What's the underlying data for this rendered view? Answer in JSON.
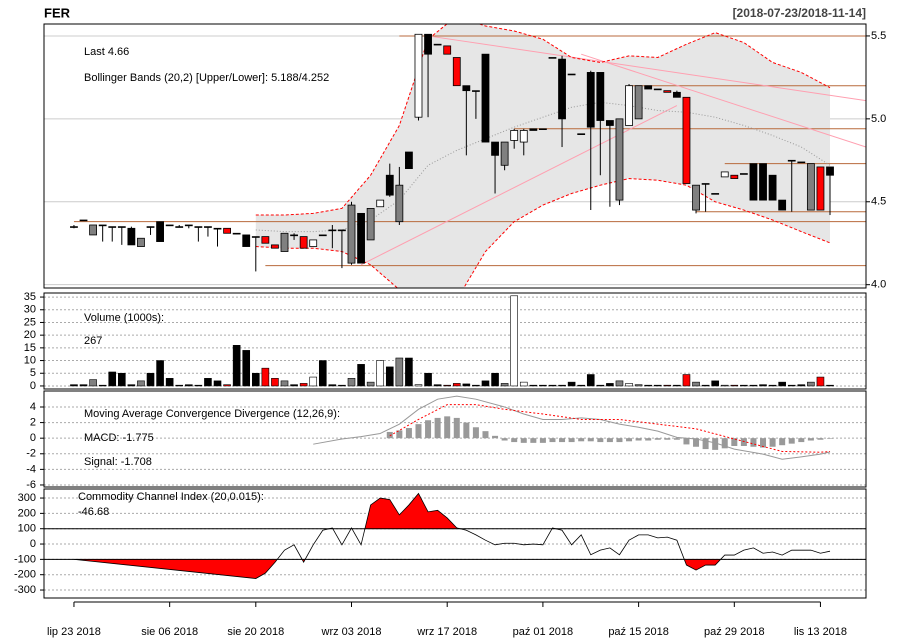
{
  "chart_data": [
    {
      "type": "candlestick",
      "title": "FER",
      "subtitle": "[2018-07-23/2018-11-14]",
      "annotations": [
        "Last 4.66"
      ],
      "xlim": [
        -3.13,
        82.76
      ],
      "ylim": [
        3.98,
        5.572
      ],
      "yticks": [
        {
          "value": 4,
          "label": "4.0"
        },
        4.5,
        {
          "value": 5,
          "label": "5.0"
        },
        5.5
      ],
      "grid": true,
      "grid_color": "#cccccc",
      "open": [
        4.35,
        4.39,
        4.36,
        4.36,
        4.35,
        4.35,
        4.34,
        4.28,
        4.35,
        4.38,
        4.36,
        4.35,
        4.36,
        4.35,
        4.35,
        4.34,
        4.34,
        4.31,
        4.3,
        4.29,
        4.29,
        4.24,
        4.2,
        4.3,
        4.29,
        4.23,
        4.3,
        4.33,
        4.33,
        4.13,
        4.43,
        4.27,
        4.47,
        4.66,
        4.38,
        4.8,
        5.01,
        5.51,
        5.45,
        5.44,
        5.37,
        5.2,
        5.17,
        5.39,
        4.86,
        4.72,
        4.87,
        4.86,
        4.94,
        4.94,
        5.37,
        5.36,
        5.27,
        4.91,
        5.28,
        5.28,
        4.99,
        4.51,
        4.96,
        5.0,
        5.2,
        5.18,
        5.17,
        5.16,
        5.13,
        4.45,
        4.61,
        4.55,
        4.65,
        4.66,
        4.67,
        4.73,
        4.73,
        4.66,
        4.51,
        4.75,
        4.74,
        4.45,
        4.71,
        4.71
      ],
      "high": [
        4.36,
        4.39,
        4.36,
        4.36,
        4.35,
        4.35,
        4.35,
        4.28,
        4.35,
        4.38,
        4.36,
        4.36,
        4.36,
        4.35,
        4.35,
        4.34,
        4.34,
        4.31,
        4.3,
        4.29,
        4.29,
        4.24,
        4.31,
        4.31,
        4.29,
        4.27,
        4.3,
        4.36,
        4.33,
        4.5,
        4.43,
        4.46,
        4.51,
        4.73,
        4.71,
        4.8,
        5.51,
        5.51,
        5.45,
        5.44,
        5.37,
        5.2,
        5.17,
        5.39,
        4.86,
        4.86,
        4.94,
        4.94,
        4.94,
        4.94,
        5.37,
        5.38,
        5.27,
        4.91,
        5.29,
        5.28,
        4.99,
        5.0,
        5.21,
        5.2,
        5.2,
        5.18,
        5.17,
        5.17,
        5.13,
        4.6,
        4.61,
        4.55,
        4.68,
        4.66,
        4.67,
        4.73,
        4.73,
        4.66,
        4.51,
        4.75,
        4.74,
        4.73,
        4.71,
        4.71
      ],
      "low": [
        4.34,
        4.39,
        4.3,
        4.26,
        4.26,
        4.24,
        4.24,
        4.23,
        4.3,
        4.26,
        4.36,
        4.35,
        4.34,
        4.26,
        4.29,
        4.23,
        4.31,
        4.31,
        4.23,
        4.08,
        4.25,
        4.22,
        4.2,
        4.27,
        4.22,
        4.23,
        4.3,
        4.22,
        4.1,
        4.12,
        4.13,
        4.27,
        4.47,
        4.53,
        4.36,
        4.7,
        4.99,
        5.01,
        5.45,
        5.39,
        5.2,
        4.78,
        5.0,
        4.86,
        4.55,
        4.69,
        4.82,
        4.78,
        4.93,
        4.94,
        5.37,
        4.83,
        5.27,
        4.91,
        4.45,
        4.66,
        4.47,
        4.48,
        4.96,
        5.0,
        5.18,
        5.18,
        5.16,
        5.13,
        4.61,
        4.43,
        4.44,
        4.55,
        4.65,
        4.64,
        4.67,
        4.51,
        4.51,
        4.51,
        4.45,
        4.44,
        4.74,
        4.45,
        4.45,
        4.42
      ],
      "close": [
        4.35,
        4.39,
        4.3,
        4.36,
        4.35,
        4.35,
        4.24,
        4.23,
        4.35,
        4.26,
        4.36,
        4.35,
        4.36,
        4.35,
        4.35,
        4.34,
        4.31,
        4.31,
        4.23,
        4.29,
        4.25,
        4.22,
        4.31,
        4.3,
        4.22,
        4.27,
        4.3,
        4.33,
        4.33,
        4.48,
        4.13,
        4.46,
        4.51,
        4.54,
        4.6,
        4.7,
        5.51,
        5.39,
        5.45,
        5.39,
        5.2,
        5.17,
        5.17,
        4.86,
        4.78,
        4.86,
        4.93,
        4.93,
        4.93,
        4.94,
        5.37,
        5.0,
        5.27,
        4.91,
        4.95,
        4.99,
        4.96,
        5.0,
        5.2,
        5.2,
        5.18,
        5.18,
        5.16,
        5.13,
        4.61,
        4.6,
        4.61,
        4.55,
        4.68,
        4.64,
        4.67,
        4.51,
        4.51,
        4.51,
        4.45,
        4.75,
        4.74,
        4.73,
        4.45,
        4.66
      ],
      "colors": [
        "#000000",
        "#000000",
        "#808080",
        "#000000",
        "#000000",
        "#000000",
        "#000000",
        "#808080",
        "#000000",
        "#000000",
        "#000000",
        "#000000",
        "#000000",
        "#000000",
        "#000000",
        "#000000",
        "#ff0000",
        "#000000",
        "#000000",
        "#000000",
        "#ff0000",
        "#ff0000",
        "#808080",
        "#000000",
        "#ff0000",
        "#ffffff",
        "#000000",
        "#000000",
        "#000000",
        "#808080",
        "#000000",
        "#808080",
        "#ffffff",
        "#000000",
        "#808080",
        "#000000",
        "#ffffff",
        "#000000",
        "#000000",
        "#ff0000",
        "#ff0000",
        "#000000",
        "#000000",
        "#000000",
        "#000000",
        "#808080",
        "#ffffff",
        "#ffffff",
        "#000000",
        "#000000",
        "#000000",
        "#000000",
        "#000000",
        "#000000",
        "#000000",
        "#000000",
        "#000000",
        "#808080",
        "#ffffff",
        "#808080",
        "#000000",
        "#000000",
        "#ff0000",
        "#000000",
        "#ff0000",
        "#808080",
        "#000000",
        "#000000",
        "#ffffff",
        "#ff0000",
        "#000000",
        "#000000",
        "#000000",
        "#000000",
        "#000000",
        "#000000",
        "#000000",
        "#808080",
        "#ff0000",
        "#000000"
      ],
      "bands": {
        "label": "Bollinger Bands (20,2) [Upper/Lower]: 5.188/4.252",
        "color": "#ff0000",
        "fill": "#e6e6e6",
        "middle_color": "#999999",
        "x": [
          19,
          22,
          25,
          28,
          31,
          34,
          37,
          40,
          43,
          46,
          49,
          52,
          55,
          58,
          61,
          64,
          67,
          70,
          73,
          76,
          79
        ],
        "upper": [
          4.42,
          4.42,
          4.43,
          4.46,
          4.66,
          4.96,
          5.48,
          5.62,
          5.56,
          5.53,
          5.48,
          5.37,
          5.34,
          5.38,
          5.37,
          5.45,
          5.52,
          5.46,
          5.34,
          5.28,
          5.188
        ],
        "middle": [
          4.33,
          4.32,
          4.32,
          4.33,
          4.39,
          4.51,
          4.72,
          4.81,
          4.88,
          4.95,
          5.01,
          5.07,
          5.1,
          5.08,
          5.05,
          5.04,
          5.01,
          4.96,
          4.9,
          4.83,
          4.72
        ],
        "lower": [
          4.23,
          4.22,
          4.22,
          4.2,
          4.12,
          3.97,
          3.83,
          3.91,
          4.2,
          4.38,
          4.48,
          4.55,
          4.6,
          4.64,
          4.63,
          4.6,
          4.5,
          4.45,
          4.39,
          4.32,
          4.252
        ]
      },
      "hline_color": "#b86a3c",
      "hlines": [
        {
          "start": 0,
          "value": 4.38
        },
        {
          "start": 20,
          "value": 4.115
        },
        {
          "start": 34,
          "value": 5.5
        },
        {
          "start": 46,
          "value": 4.94
        },
        {
          "start": 58,
          "value": 5.2
        },
        {
          "start": 65,
          "value": 4.44
        },
        {
          "start": 68,
          "value": 4.73
        }
      ],
      "trend_color": "#ff9fb0",
      "trendlines": [
        {
          "x": [
            37,
            82.76
          ],
          "values": [
            5.5,
            5.11
          ]
        },
        {
          "x": [
            53,
            82.76
          ],
          "values": [
            5.39,
            4.83
          ]
        },
        {
          "x": [
            30,
            63
          ],
          "values": [
            4.12,
            5.08
          ]
        }
      ]
    },
    {
      "type": "bar",
      "annotations": [
        "Volume (1000s):",
        "267"
      ],
      "xlim": [
        -3.13,
        82.76
      ],
      "ylim": [
        -1.2,
        36.6
      ],
      "yticks": [
        0,
        5,
        10,
        15,
        20,
        25,
        30,
        35
      ],
      "grid": true,
      "grid_color": "#aaaaaa",
      "values": [
        0.5,
        0.5,
        2.5,
        0.3,
        5.5,
        5,
        0.5,
        2,
        5,
        10,
        3,
        0.3,
        0.5,
        0.3,
        3,
        2,
        0.5,
        16,
        14,
        5,
        7,
        3,
        2,
        0.5,
        1,
        3.5,
        10,
        0.5,
        0.3,
        3,
        8.5,
        1.5,
        10,
        7.5,
        11,
        11,
        0.5,
        5,
        0.5,
        0.3,
        1,
        0.8,
        0.3,
        2,
        5,
        1,
        35.5,
        1.5,
        0.3,
        0.3,
        0.3,
        0.3,
        1.5,
        0.3,
        4.5,
        0.3,
        1,
        2,
        1,
        0.5,
        0.3,
        0.3,
        0.3,
        0.3,
        4.5,
        1.5,
        0.3,
        2,
        0.3,
        0.3,
        0.3,
        0.3,
        0.5,
        0.3,
        1.5,
        0.3,
        0.5,
        1.5,
        3.5,
        0.3
      ]
    },
    {
      "type": "line",
      "title": "Moving Average Convergence Divergence (12,26,9):",
      "xlim": [
        -3.13,
        82.76
      ],
      "ylim": [
        -6.26,
        6.05
      ],
      "yticks": [
        -6,
        -4,
        -2,
        0,
        2,
        4
      ],
      "grid": true,
      "grid_color": "#aaaaaa",
      "histogram": {
        "color": "#999999",
        "x": [
          33,
          34,
          35,
          36,
          37,
          38,
          39,
          40,
          41,
          42,
          43,
          44,
          45,
          46,
          47,
          48,
          49,
          50,
          51,
          52,
          53,
          54,
          55,
          56,
          57,
          58,
          59,
          60,
          61,
          62,
          63,
          64,
          65,
          66,
          67,
          68,
          69,
          70,
          71,
          72,
          73,
          74,
          75,
          76,
          77,
          78,
          79
        ],
        "values": [
          0.8,
          1.0,
          1.3,
          1.8,
          2.3,
          2.6,
          2.8,
          2.6,
          2.0,
          1.4,
          0.9,
          0.3,
          -0.3,
          -0.5,
          -0.6,
          -0.6,
          -0.6,
          -0.5,
          -0.5,
          -0.5,
          -0.4,
          -0.4,
          -0.5,
          -0.5,
          -0.5,
          -0.4,
          -0.3,
          -0.3,
          -0.2,
          -0.2,
          -0.2,
          -0.8,
          -1.1,
          -1.4,
          -1.5,
          -1.3,
          -1.0,
          -1.0,
          -1.1,
          -1.2,
          -1.1,
          -0.9,
          -0.7,
          -0.5,
          -0.3,
          -0.2,
          -0.07
        ]
      },
      "series": [
        {
          "name": "MACD: -1.775",
          "color": "#999999",
          "dash": false,
          "x": [
            25,
            28,
            30,
            32,
            34,
            36,
            38,
            40,
            42,
            45,
            47,
            49,
            51,
            53,
            55,
            57,
            59,
            61,
            63,
            65,
            67,
            69,
            72,
            74,
            76,
            78,
            79
          ],
          "values": [
            -0.77,
            -0.1,
            0.2,
            0.6,
            1.8,
            3.7,
            5.0,
            5.4,
            5.0,
            4.0,
            3.1,
            2.4,
            2.4,
            2.6,
            2.4,
            1.8,
            1.4,
            0.9,
            0.1,
            -0.1,
            -0.6,
            -1.4,
            -2.05,
            -2.7,
            -2.4,
            -2.05,
            -1.775
          ]
        },
        {
          "name": "Signal: -1.708",
          "color": "#ff0000",
          "dash": true,
          "x": [
            33,
            36,
            39,
            42,
            45,
            49,
            53,
            57,
            61,
            65,
            69,
            74,
            78,
            79
          ],
          "values": [
            0.3,
            2.4,
            4.3,
            4.3,
            3.7,
            3.1,
            2.4,
            2.4,
            1.8,
            1.2,
            -0.1,
            -1.7,
            -1.8,
            -1.708
          ]
        }
      ]
    },
    {
      "type": "line",
      "title": "Commodity Channel Index (20,0.015):",
      "annotations": [
        "-46.68"
      ],
      "xlim": [
        -3.13,
        82.76
      ],
      "ylim": [
        -352,
        359
      ],
      "yticks": [
        -300,
        -200,
        -100,
        0,
        100,
        200,
        300
      ],
      "grid": true,
      "grid_color": "#aaaaaa",
      "levels": [
        100,
        -100
      ],
      "fill": "#ff0000",
      "color": "#000000",
      "x": [
        0,
        19,
        20,
        21,
        22,
        23,
        24,
        25,
        26,
        27,
        28,
        29,
        30,
        31,
        32,
        33,
        34,
        35,
        36,
        37,
        38,
        39,
        40,
        41,
        42,
        43,
        44,
        45,
        46,
        47,
        48,
        49,
        50,
        51,
        52,
        53,
        54,
        55,
        56,
        57,
        58,
        59,
        60,
        61,
        62,
        63,
        64,
        65,
        66,
        67,
        68,
        69,
        70,
        71,
        72,
        73,
        74,
        75,
        76,
        77,
        78,
        79
      ],
      "values": [
        -100,
        -225,
        -190,
        -120,
        -40,
        -5,
        -118,
        -5,
        90,
        105,
        -5,
        105,
        -5,
        255,
        300,
        290,
        190,
        255,
        330,
        210,
        220,
        170,
        105,
        90,
        60,
        25,
        -5,
        5,
        5,
        -5,
        0,
        -5,
        105,
        90,
        -5,
        60,
        -70,
        -40,
        -25,
        -70,
        25,
        60,
        60,
        40,
        45,
        25,
        -137,
        -170,
        -137,
        -137,
        -72,
        -72,
        -40,
        -25,
        -60,
        -52,
        -72,
        -40,
        -40,
        -40,
        -60,
        -46.68
      ],
      "xticks": [
        {
          "value": 0,
          "label": "lip 23 2018"
        },
        {
          "value": 10,
          "label": "sie 06 2018"
        },
        {
          "value": 19,
          "label": "sie 20 2018"
        },
        {
          "value": 29,
          "label": "wrz 03 2018"
        },
        {
          "value": 39,
          "label": "wrz 17 2018"
        },
        {
          "value": 49,
          "label": "paź 01 2018"
        },
        {
          "value": 59,
          "label": "paź 15 2018"
        },
        {
          "value": 69,
          "label": "paź 29 2018"
        },
        {
          "value": 78,
          "label": "lis 13 2018"
        }
      ]
    }
  ]
}
